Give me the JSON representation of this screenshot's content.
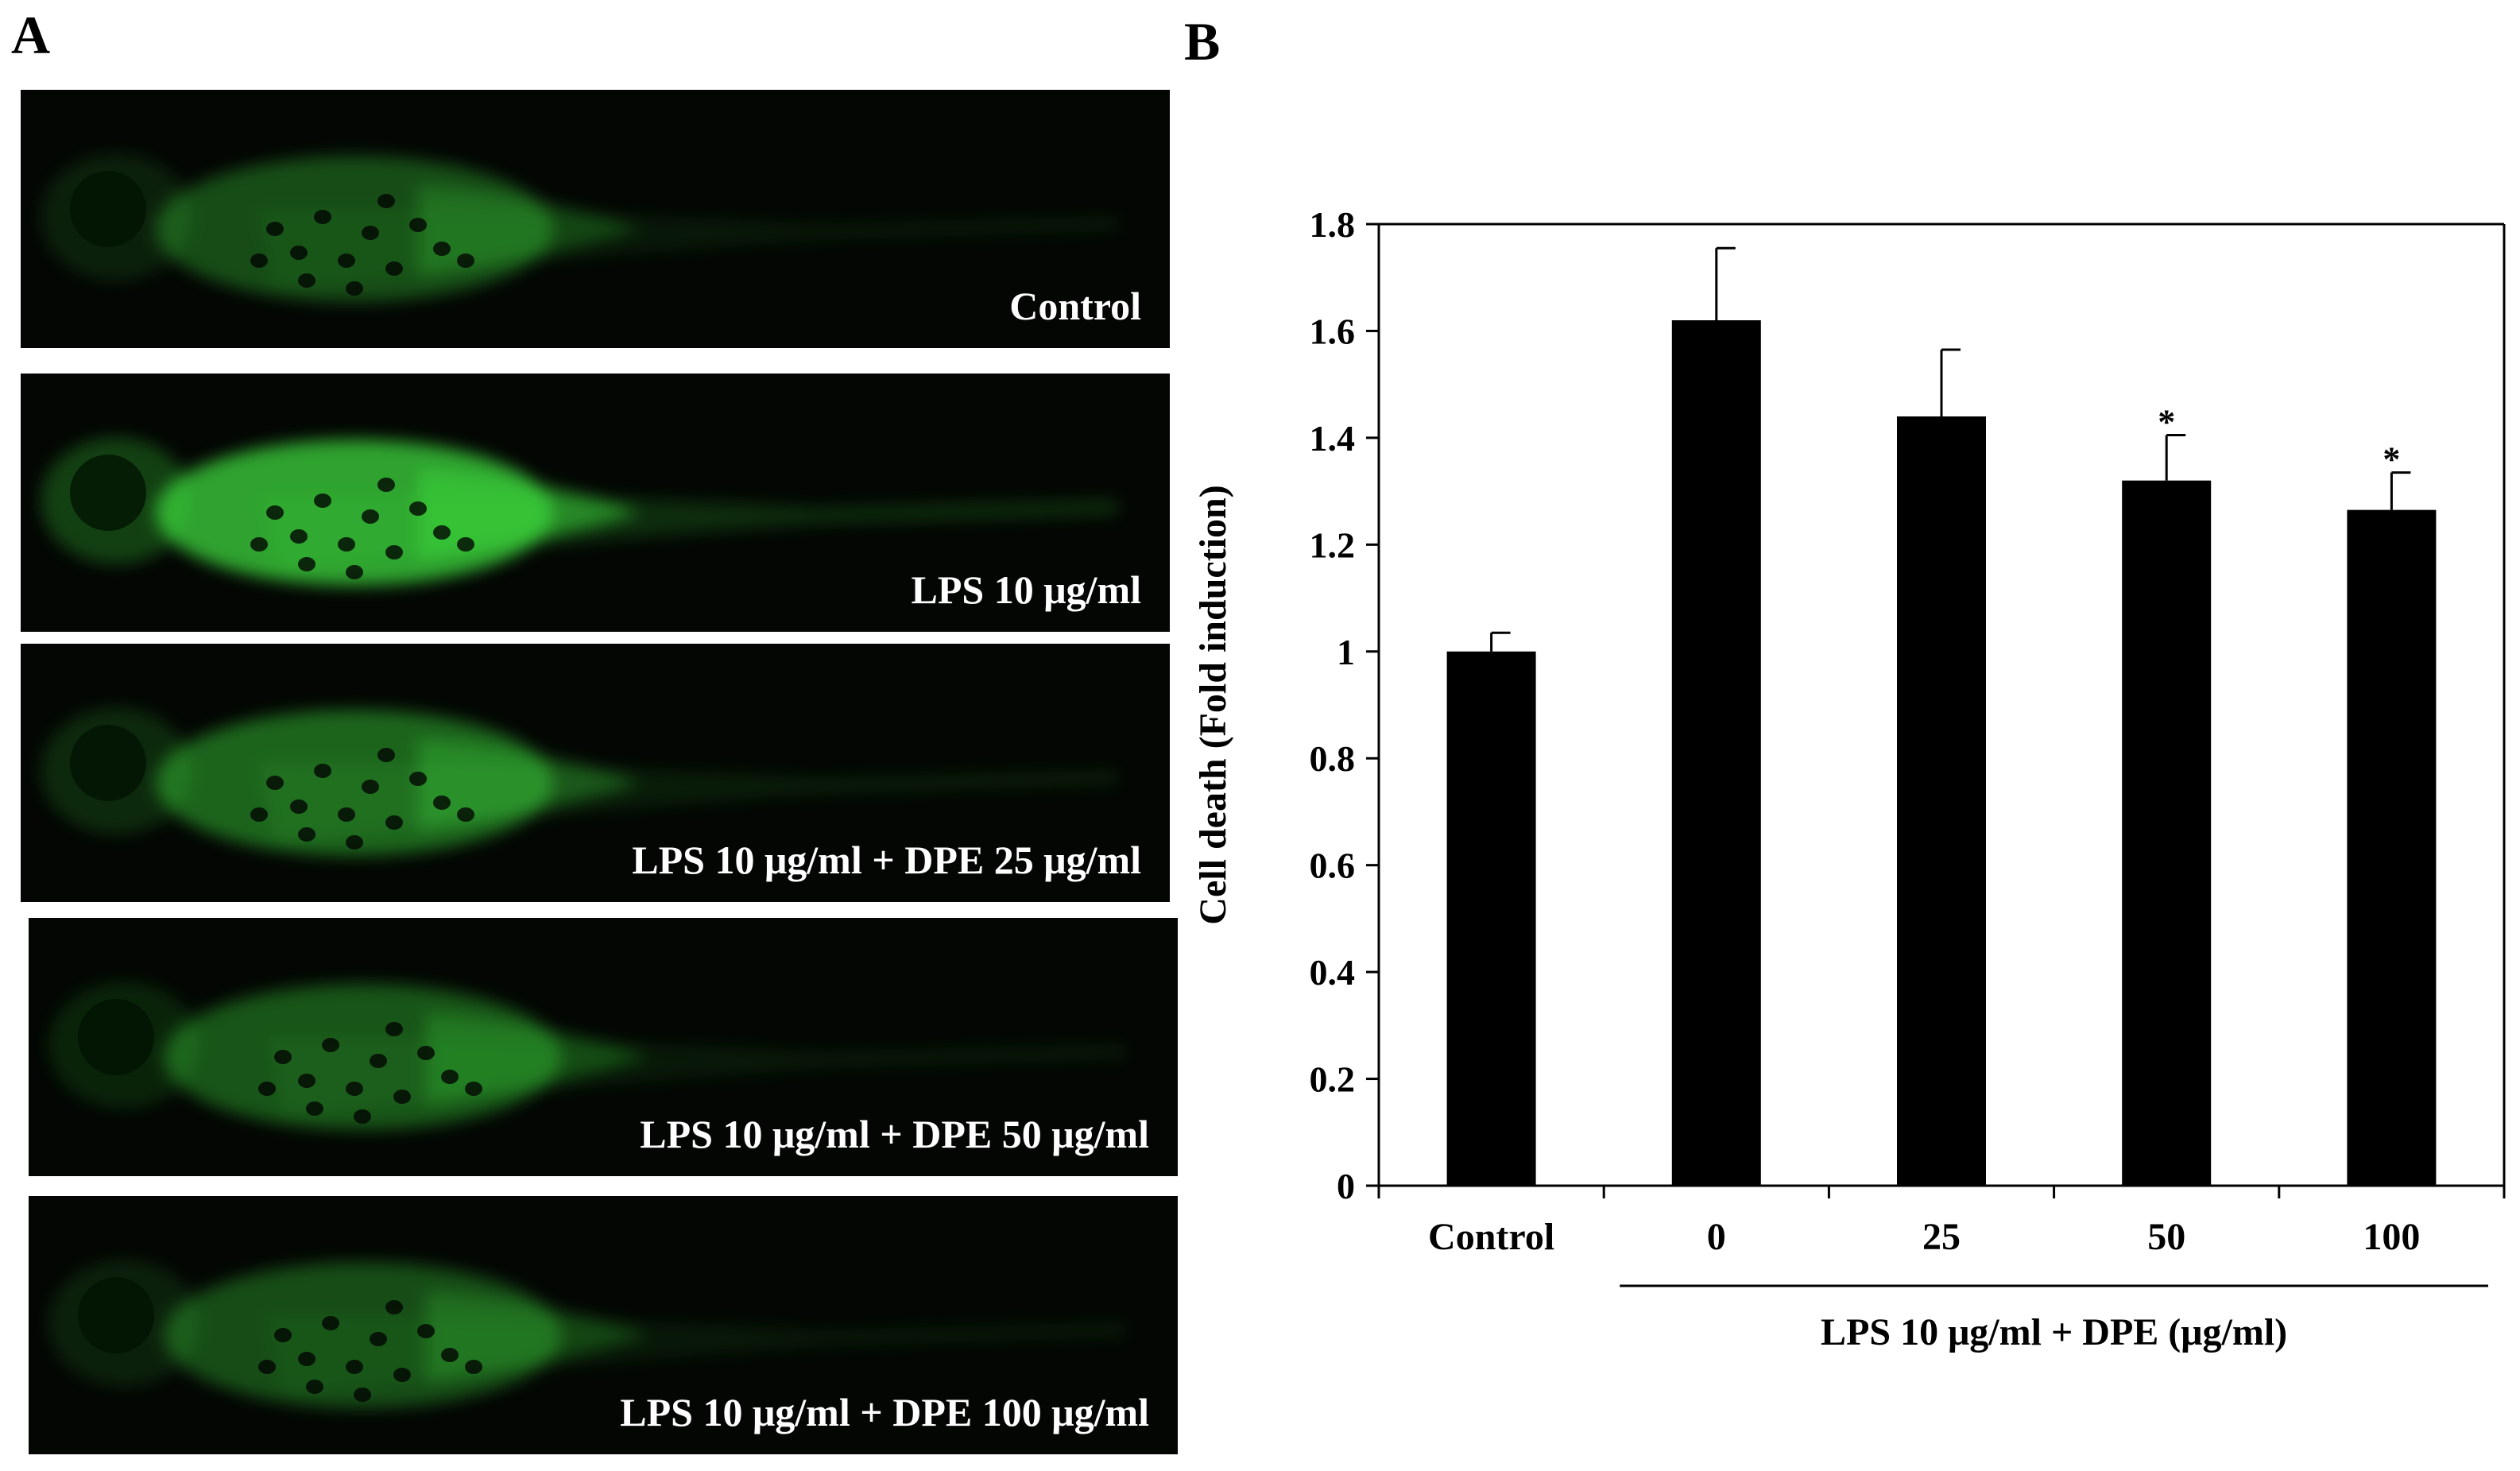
{
  "panels": {
    "a": "A",
    "b": "B"
  },
  "images": [
    {
      "label": "Control",
      "level": 0.45
    },
    {
      "label": "LPS 10 μg/ml",
      "level": 1.0
    },
    {
      "label": "LPS 10 μg/ml + DPE 25 μg/ml",
      "level": 0.6
    },
    {
      "label": "LPS 10 μg/ml + DPE 50 μg/ml",
      "level": 0.5
    },
    {
      "label": "LPS 10 μg/ml + DPE 100 μg/ml",
      "level": 0.45
    }
  ],
  "colors": {
    "fluorescence": "#3cd63c",
    "background": "#030603",
    "bar": "#000000"
  },
  "chart_data": {
    "type": "bar",
    "categories": [
      "Control",
      "0",
      "25",
      "50",
      "100"
    ],
    "values": [
      1.0,
      1.62,
      1.44,
      1.32,
      1.265
    ],
    "error": [
      0.035,
      0.135,
      0.125,
      0.085,
      0.07
    ],
    "significance": [
      "",
      "",
      "",
      "*",
      "*"
    ],
    "ylabel": "Cell death (Fold induction)",
    "xlabel": "LPS 10 μg/ml + DPE (μg/ml)",
    "ylim": [
      0,
      1.8
    ],
    "yticks": [
      "0",
      "0.2",
      "0.4",
      "0.6",
      "0.8",
      "1",
      "1.2",
      "1.4",
      "1.6",
      "1.8"
    ],
    "grid": false
  }
}
